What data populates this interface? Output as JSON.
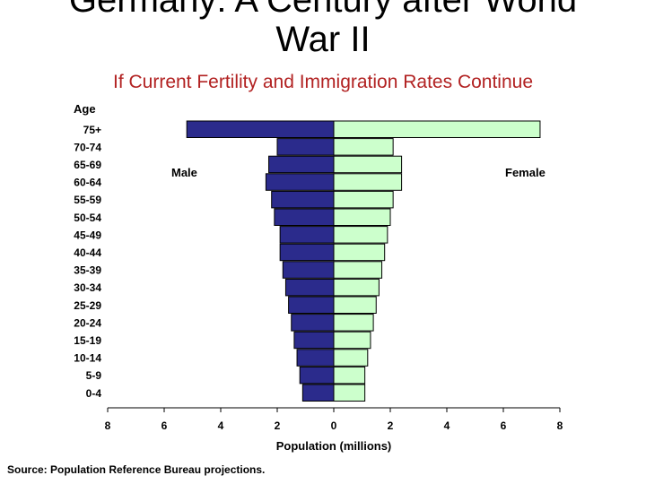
{
  "slide": {
    "title_line1": "Germany: A Century after World",
    "title_line2": "War II",
    "subtitle": "If Current Fertility and Immigration Rates Continue",
    "source": "Source: Population Reference Bureau projections."
  },
  "colors": {
    "male": "#2b2b8c",
    "female": "#ccffcc",
    "subtitle": "#b22222"
  },
  "chart_data": {
    "type": "bar",
    "orientation": "horizontal-population-pyramid",
    "ylabel": "Age",
    "xlabel": "Population (millions)",
    "categories": [
      "75+",
      "70-74",
      "65-69",
      "60-64",
      "55-59",
      "50-54",
      "45-49",
      "40-44",
      "35-39",
      "30-34",
      "25-29",
      "20-24",
      "15-19",
      "10-14",
      "5-9",
      "0-4"
    ],
    "series": [
      {
        "name": "Male",
        "values": [
          5.2,
          2.0,
          2.3,
          2.4,
          2.2,
          2.1,
          1.9,
          1.9,
          1.8,
          1.7,
          1.6,
          1.5,
          1.4,
          1.3,
          1.2,
          1.1
        ]
      },
      {
        "name": "Female",
        "values": [
          7.3,
          2.1,
          2.4,
          2.4,
          2.1,
          2.0,
          1.9,
          1.8,
          1.7,
          1.6,
          1.5,
          1.4,
          1.3,
          1.2,
          1.1,
          1.1
        ]
      }
    ],
    "xticks": [
      "8",
      "6",
      "4",
      "2",
      "0",
      "2",
      "4",
      "6",
      "8"
    ],
    "xlim": [
      -8,
      8
    ],
    "grid": false,
    "legend": false
  }
}
